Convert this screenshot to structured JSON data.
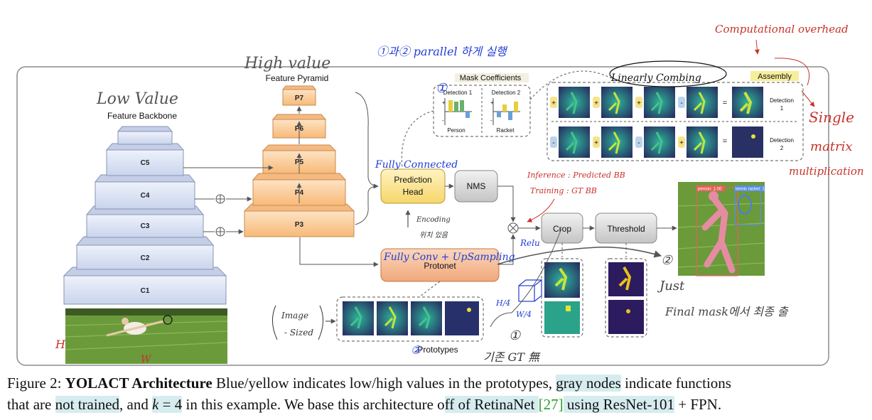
{
  "diagram": {
    "labels": {
      "backbone": "Feature Backbone",
      "pyramid": "Feature Pyramid",
      "mask_coefficients": "Mask Coefficients",
      "assembly": "Assembly",
      "prediction_head": [
        "Prediction",
        "Head"
      ],
      "nms": "NMS",
      "protonet": "Protonet",
      "crop": "Crop",
      "threshold": "Threshold",
      "prototypes": "Prototypes",
      "detection1": [
        "Detection",
        "1"
      ],
      "detection2": [
        "Detection",
        "2"
      ],
      "coef_detection1": "Detection 1",
      "coef_detection2": "Detection 2",
      "person": "Person",
      "racket": "Racket",
      "h4": "H/4",
      "w4": "W/4",
      "bbox_person": "person: 1.00",
      "bbox_racket": "tennis racket: 1.00"
    },
    "backbone_layers": [
      "C5",
      "C4",
      "C3",
      "C2",
      "C1"
    ],
    "pyramid_layers": [
      "P7",
      "P6",
      "P5",
      "P4",
      "P3"
    ],
    "assembly_rows": [
      [
        "+",
        "+",
        "+",
        "-"
      ],
      [
        "-",
        "+",
        "-",
        "+"
      ]
    ],
    "annotations": {
      "low_value": "Low Value",
      "high_value": "High value",
      "parallel": "①과② parallel 하게 실행",
      "linearly_combining": "Linearly Combing",
      "computational_overhead": "Computational overhead",
      "single_matrix": [
        "Single",
        "matrix",
        "multiplication"
      ],
      "fully_connected": "Fully Connected",
      "fully_conv": "Fully Conv + UpSampling",
      "inference": "Inference : Predicted BB",
      "training": "Training : GT BB",
      "relu": "Relu",
      "encoding": [
        "Encoding",
        "위치 있음"
      ],
      "image_sized": [
        "Image",
        "- Sized"
      ],
      "just": "Just",
      "final_mask": "Final mask에서 최종 출",
      "gt_no": "기존 GT 無",
      "circle1_a": "①",
      "circle1_b": "①",
      "circle2_a": "②",
      "circle2_b": "②",
      "h_mark": "H",
      "w_mark": "W"
    }
  },
  "caption": {
    "prefix": "Figure 2: ",
    "title": "YOLACT Architecture",
    "t1": "  Blue/yellow indicates low/high values in the prototypes, ",
    "h1": "gray nodes",
    "t2": " indicate functions",
    "t3": "that are ",
    "h2": "not trained",
    "t4": ", and ",
    "k": "k",
    "eq": " = 4",
    "t5": " in this example. We base this architecture o",
    "h3": "ff of RetinaNet ",
    "ref": "[27]",
    "h4": " using ResNet-101",
    "t6": " + FPN."
  },
  "colors": {
    "layer_blue": "#dfe6f5",
    "layer_orange": "#fcd3a5",
    "head_yellow": "#fde89b",
    "protonet_orange": "#f6c09a",
    "gray_node": "#d8d8d8",
    "annotation_blue": "#1f3ed8",
    "annotation_red": "#c8322a",
    "annotation_gray": "#555555",
    "grass": "#6b9a3b",
    "proto_dark": "#2c2a6a",
    "proto_teal": "#2aa38a",
    "proto_yellow": "#e7e23a"
  }
}
